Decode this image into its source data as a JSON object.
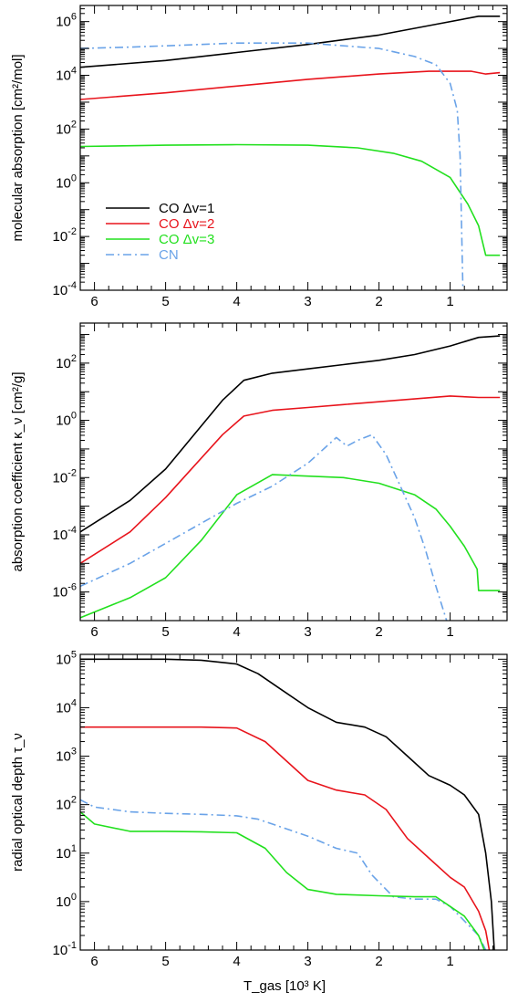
{
  "colors": {
    "co1": "#000000",
    "co2": "#e8141c",
    "co3": "#22e01e",
    "cn": "#6aa3e8"
  },
  "chart_data": [
    {
      "type": "line",
      "ylabel": "molecular absorption   [cm²/mol]",
      "y_scale": "log",
      "ylim_exp": [
        -4,
        6.6
      ],
      "xlim": [
        6.2,
        0.2
      ],
      "x_ticks": [
        6,
        5,
        4,
        3,
        2,
        1
      ],
      "x_tick_labels": [
        "6",
        "5",
        "4",
        "3",
        "2",
        "1"
      ],
      "y_tick_exps": [
        6,
        4,
        2,
        0,
        -2,
        -4
      ],
      "y_tick_labels": [
        {
          "base": "10",
          "exp": "6"
        },
        {
          "base": "10",
          "exp": "4"
        },
        {
          "base": "10",
          "exp": "2"
        },
        {
          "base": "10",
          "exp": "0"
        },
        {
          "base": "10",
          "exp": "-2"
        },
        {
          "base": "10",
          "exp": "-4"
        }
      ],
      "legend": {
        "placement": "left",
        "entries": [
          {
            "label": "CO  Δv=1",
            "color_key": "co1",
            "dash": "solid"
          },
          {
            "label": "CO  Δv=2",
            "color_key": "co2",
            "dash": "solid"
          },
          {
            "label": "CO  Δv=3",
            "color_key": "co3",
            "dash": "solid"
          },
          {
            "label": "CN",
            "color_key": "cn",
            "dash": "dashdot"
          }
        ]
      },
      "series": [
        {
          "color_key": "co1",
          "dash": "solid",
          "x": [
            6.2,
            5,
            4,
            3,
            2,
            1.2,
            0.6,
            0.3
          ],
          "log10_y": [
            4.3,
            4.55,
            4.85,
            5.15,
            5.5,
            5.9,
            6.2,
            6.2
          ]
        },
        {
          "color_key": "co2",
          "dash": "solid",
          "x": [
            6.2,
            5,
            4,
            3,
            2,
            1.3,
            0.7,
            0.5,
            0.3
          ],
          "log10_y": [
            3.1,
            3.35,
            3.6,
            3.85,
            4.05,
            4.15,
            4.15,
            4.05,
            4.1
          ]
        },
        {
          "color_key": "co3",
          "dash": "solid",
          "x": [
            6.2,
            5,
            4,
            3,
            2.3,
            1.8,
            1.4,
            1,
            0.75,
            0.6,
            0.5,
            0.3
          ],
          "log10_y": [
            1.35,
            1.4,
            1.42,
            1.4,
            1.3,
            1.1,
            0.8,
            0.2,
            -0.8,
            -1.6,
            -2.7,
            -2.7
          ]
        },
        {
          "color_key": "cn",
          "dash": "dashdot",
          "x": [
            6.2,
            5.5,
            5,
            4.5,
            4,
            3.5,
            3,
            2.5,
            2,
            1.5,
            1.2,
            1,
            0.9,
            0.86,
            0.82
          ],
          "log10_y": [
            5.0,
            5.05,
            5.1,
            5.15,
            5.2,
            5.2,
            5.2,
            5.1,
            5.0,
            4.7,
            4.4,
            3.7,
            2.7,
            1.0,
            -4.0
          ]
        }
      ]
    },
    {
      "type": "line",
      "ylabel": "absorption  coefficient   κ_ν   [cm²/g]",
      "y_scale": "log",
      "ylim_exp": [
        -7,
        3.4
      ],
      "xlim": [
        6.2,
        0.2
      ],
      "x_ticks": [
        6,
        5,
        4,
        3,
        2,
        1
      ],
      "x_tick_labels": [
        "6",
        "5",
        "4",
        "3",
        "2",
        "1"
      ],
      "y_tick_exps": [
        2,
        0,
        -2,
        -4,
        -6
      ],
      "y_tick_labels": [
        {
          "base": "10",
          "exp": "2"
        },
        {
          "base": "10",
          "exp": "0"
        },
        {
          "base": "10",
          "exp": "-2"
        },
        {
          "base": "10",
          "exp": "-4"
        },
        {
          "base": "10",
          "exp": "-6"
        }
      ],
      "series": [
        {
          "color_key": "co1",
          "dash": "solid",
          "x": [
            6.2,
            5.5,
            5,
            4.6,
            4.2,
            3.9,
            3.5,
            3,
            2.5,
            2,
            1.5,
            1,
            0.6,
            0.3
          ],
          "log10_y": [
            -3.9,
            -2.8,
            -1.7,
            -0.5,
            0.7,
            1.4,
            1.65,
            1.8,
            1.95,
            2.1,
            2.3,
            2.6,
            2.9,
            2.95
          ]
        },
        {
          "color_key": "co2",
          "dash": "solid",
          "x": [
            6.2,
            5.5,
            5,
            4.6,
            4.2,
            3.9,
            3.5,
            3,
            2.5,
            2,
            1.5,
            1,
            0.6,
            0.3
          ],
          "log10_y": [
            -5.0,
            -3.9,
            -2.7,
            -1.6,
            -0.5,
            0.15,
            0.35,
            0.45,
            0.55,
            0.65,
            0.75,
            0.85,
            0.8,
            0.8
          ]
        },
        {
          "color_key": "co3",
          "dash": "solid",
          "x": [
            6.2,
            5.5,
            5,
            4.5,
            4,
            3.5,
            3,
            2.5,
            2,
            1.5,
            1.2,
            1,
            0.8,
            0.62,
            0.6,
            0.3
          ],
          "log10_y": [
            -6.9,
            -6.2,
            -5.5,
            -4.2,
            -2.6,
            -1.9,
            -1.95,
            -2.0,
            -2.2,
            -2.6,
            -3.1,
            -3.7,
            -4.4,
            -5.2,
            -5.95,
            -5.95
          ]
        },
        {
          "color_key": "cn",
          "dash": "dashdot",
          "x": [
            6.2,
            5.5,
            5,
            4.5,
            4,
            3.5,
            3,
            2.6,
            2.45,
            2.3,
            2.1,
            1.9,
            1.7,
            1.5,
            1.35,
            1.2,
            1.1,
            1.05
          ],
          "log10_y": [
            -5.8,
            -5.0,
            -4.3,
            -3.6,
            -2.9,
            -2.3,
            -1.5,
            -0.6,
            -0.9,
            -0.7,
            -0.5,
            -1.2,
            -2.3,
            -3.4,
            -4.5,
            -5.8,
            -6.6,
            -7.0
          ]
        }
      ]
    },
    {
      "type": "line",
      "xlabel": "T_gas     [10³ K]",
      "ylabel": "radial  optical  depth    τ_ν",
      "y_scale": "log",
      "ylim_exp": [
        -1,
        5.1
      ],
      "xlim": [
        6.2,
        0.2
      ],
      "x_ticks": [
        6,
        5,
        4,
        3,
        2,
        1
      ],
      "x_tick_labels": [
        "6",
        "5",
        "4",
        "3",
        "2",
        "1"
      ],
      "y_tick_exps": [
        5,
        4,
        3,
        2,
        1,
        0,
        -1
      ],
      "y_tick_labels": [
        {
          "base": "10",
          "exp": "5"
        },
        {
          "base": "10",
          "exp": "4"
        },
        {
          "base": "10",
          "exp": "3"
        },
        {
          "base": "10",
          "exp": "2"
        },
        {
          "base": "10",
          "exp": "1"
        },
        {
          "base": "10",
          "exp": "0"
        },
        {
          "base": "10",
          "exp": "-1"
        }
      ],
      "series": [
        {
          "color_key": "co1",
          "dash": "solid",
          "x": [
            6.2,
            5,
            4.5,
            4,
            3.7,
            3.4,
            3,
            2.6,
            2.2,
            1.9,
            1.6,
            1.3,
            1,
            0.8,
            0.6,
            0.5,
            0.42,
            0.38
          ],
          "log10_y": [
            5.0,
            5.0,
            4.98,
            4.9,
            4.7,
            4.4,
            4.0,
            3.7,
            3.6,
            3.4,
            3.0,
            2.6,
            2.4,
            2.2,
            1.8,
            1.0,
            0.0,
            -1.0
          ]
        },
        {
          "color_key": "co2",
          "dash": "solid",
          "x": [
            6.2,
            5,
            4.5,
            4,
            3.6,
            3.3,
            3,
            2.6,
            2.2,
            1.9,
            1.6,
            1.3,
            1,
            0.8,
            0.6,
            0.5,
            0.45
          ],
          "log10_y": [
            3.6,
            3.6,
            3.6,
            3.58,
            3.3,
            2.9,
            2.5,
            2.3,
            2.2,
            1.9,
            1.3,
            0.9,
            0.5,
            0.3,
            -0.2,
            -0.6,
            -1.0
          ]
        },
        {
          "color_key": "cn",
          "dash": "dashdot",
          "x": [
            6.2,
            6,
            5.5,
            5,
            4.5,
            4,
            3.7,
            3.4,
            3,
            2.6,
            2.3,
            2.1,
            2,
            1.8,
            1.5,
            1.2,
            1,
            0.8,
            0.6,
            0.5
          ],
          "log10_y": [
            2.1,
            1.95,
            1.85,
            1.82,
            1.8,
            1.77,
            1.7,
            1.55,
            1.35,
            1.1,
            1.0,
            0.55,
            0.4,
            0.1,
            0.05,
            0.05,
            -0.1,
            -0.4,
            -0.7,
            -1.0
          ]
        },
        {
          "color_key": "co3",
          "dash": "solid",
          "x": [
            6.2,
            6,
            5.5,
            5,
            4.5,
            4,
            3.6,
            3.3,
            3,
            2.6,
            2,
            1.5,
            1.2,
            1,
            0.8,
            0.6,
            0.52
          ],
          "log10_y": [
            1.85,
            1.6,
            1.45,
            1.45,
            1.44,
            1.42,
            1.1,
            0.6,
            0.25,
            0.15,
            0.12,
            0.1,
            0.1,
            -0.1,
            -0.3,
            -0.7,
            -1.0
          ]
        }
      ]
    }
  ]
}
